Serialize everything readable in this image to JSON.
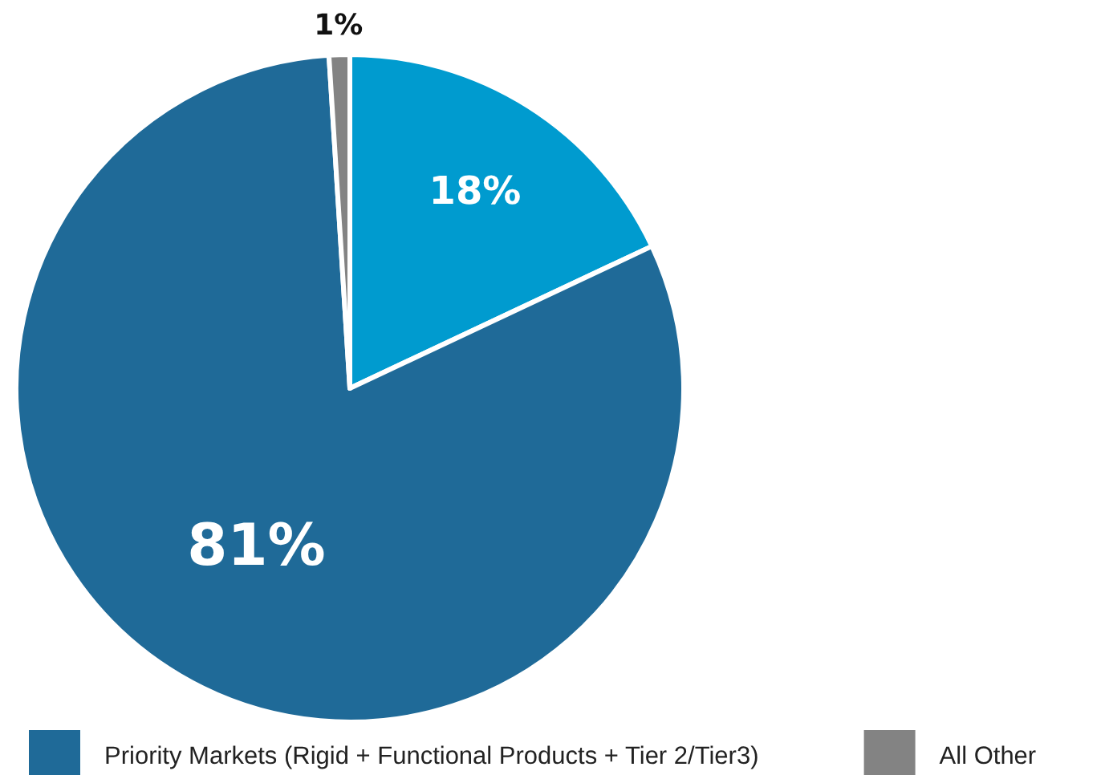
{
  "chart_data": {
    "type": "pie",
    "categories": [
      null,
      "Priority Markets (Rigid + Functional Products + Tier 2/Tier3)",
      "All Other"
    ],
    "values": [
      18,
      81,
      1
    ],
    "colors": [
      "#009bcf",
      "#1f6a98",
      "#838383"
    ],
    "value_labels": [
      "18%",
      "81%",
      "1%"
    ],
    "legend": "bottom"
  }
}
